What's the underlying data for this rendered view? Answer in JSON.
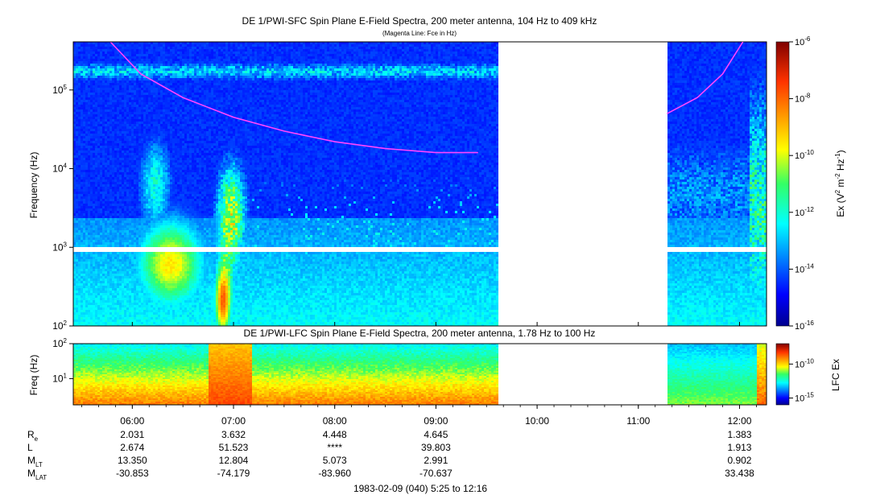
{
  "chart_data": [
    {
      "type": "heatmap",
      "title": "DE 1/PWI-SFC  Spin Plane E-Field Spectra, 200 meter antenna, 104 Hz to 409 kHz",
      "subtitle": "(Magenta Line: Fce in Hz)",
      "ylabel": "Frequency (Hz)",
      "y_scale": "log",
      "ylim": [
        100,
        409000
      ],
      "y_ticks": [
        {
          "value": 100,
          "base": "10",
          "exp": "2"
        },
        {
          "value": 1000,
          "base": "10",
          "exp": "3"
        },
        {
          "value": 10000,
          "base": "10",
          "exp": "4"
        },
        {
          "value": 100000,
          "base": "10",
          "exp": "5"
        }
      ],
      "x_range": [
        "05:25",
        "12:16"
      ],
      "data_gap": [
        "09:37",
        "11:17"
      ],
      "freq_gap_hz": [
        900,
        1050
      ],
      "colorbar": {
        "label_prefix": "Ex (V",
        "label_sup1": "2",
        "label_mid": " m",
        "label_sup2": "-2",
        "label_mid2": " Hz",
        "label_sup3": "-1",
        "label_suffix": ")",
        "scale": "log",
        "range": [
          1e-16,
          1e-06
        ],
        "ticks": [
          {
            "value": 1e-06,
            "base": "10",
            "exp": "-6"
          },
          {
            "value": 1e-08,
            "base": "10",
            "exp": "-8"
          },
          {
            "value": 1e-10,
            "base": "10",
            "exp": "-10"
          },
          {
            "value": 1e-12,
            "base": "10",
            "exp": "-12"
          },
          {
            "value": 1e-14,
            "base": "10",
            "exp": "-14"
          },
          {
            "value": 1e-16,
            "base": "10",
            "exp": "-16"
          }
        ]
      },
      "overlay_line": {
        "color": "#ff44ff",
        "points": [
          {
            "t": "05:47",
            "f": 409000
          },
          {
            "t": "06:05",
            "f": 160000
          },
          {
            "t": "06:30",
            "f": 80000
          },
          {
            "t": "07:00",
            "f": 45000
          },
          {
            "t": "07:30",
            "f": 30000
          },
          {
            "t": "08:00",
            "f": 22000
          },
          {
            "t": "08:30",
            "f": 18000
          },
          {
            "t": "09:00",
            "f": 16000
          },
          {
            "t": "09:25",
            "f": 16000
          },
          {
            "t": "11:17",
            "f": 50000
          },
          {
            "t": "11:35",
            "f": 80000
          },
          {
            "t": "11:50",
            "f": 160000
          },
          {
            "t": "12:02",
            "f": 409000
          }
        ]
      }
    },
    {
      "type": "heatmap",
      "title": "DE 1/PWI-LFC  Spin Plane E-Field Spectra, 200 meter antenna, 1.78 Hz to 100 Hz",
      "ylabel": "Freq (Hz)",
      "y_scale": "log",
      "ylim": [
        1.78,
        100
      ],
      "y_ticks": [
        {
          "value": 10,
          "base": "10",
          "exp": "1"
        },
        {
          "value": 100,
          "base": "10",
          "exp": "2"
        }
      ],
      "x_range": [
        "05:25",
        "12:16"
      ],
      "data_gap": [
        "09:37",
        "11:17"
      ],
      "colorbar": {
        "label": "LFC Ex",
        "scale": "log",
        "range": [
          1e-16,
          1e-07
        ],
        "ticks": [
          {
            "value": 1e-10,
            "base": "10",
            "exp": "-10"
          },
          {
            "value": 1e-15,
            "base": "10",
            "exp": "-15"
          }
        ]
      }
    }
  ],
  "x_axis": {
    "start": "05:25",
    "end": "12:16",
    "ticks": [
      "06:00",
      "07:00",
      "08:00",
      "09:00",
      "10:00",
      "11:00",
      "12:00"
    ]
  },
  "ephemeris": {
    "rows": [
      {
        "label": "R",
        "sub": "e",
        "values": [
          "2.031",
          "3.632",
          "4.448",
          "4.645",
          "",
          "",
          "1.383"
        ]
      },
      {
        "label": "L",
        "sub": "",
        "values": [
          "2.674",
          "51.523",
          "****",
          "39.803",
          "",
          "",
          "1.913"
        ]
      },
      {
        "label": "M",
        "sub": "LT",
        "values": [
          "13.350",
          "12.804",
          "5.073",
          "2.991",
          "",
          "",
          "0.902"
        ]
      },
      {
        "label": "M",
        "sub": "LAT",
        "values": [
          "-30.853",
          "-74.179",
          "-83.960",
          "-70.637",
          "",
          "",
          "33.438"
        ]
      }
    ]
  },
  "footer": {
    "date_range": "1983-02-09 (040) 5:25 to 12:16"
  }
}
